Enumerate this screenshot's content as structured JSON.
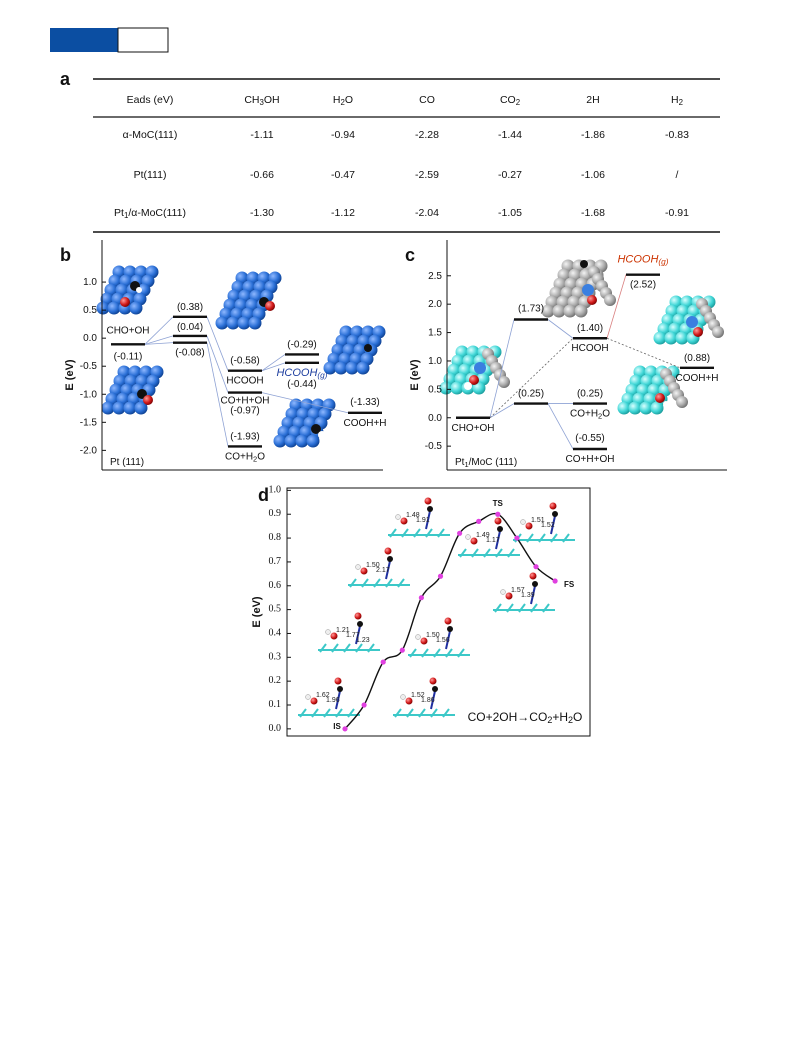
{
  "table": {
    "label": "a",
    "columns": [
      "Eads (eV)",
      "CH3OH",
      "H2O",
      "CO",
      "CO2",
      "2H",
      "H2"
    ],
    "rows": [
      [
        "α-MoC(111)",
        "-1.11",
        "-0.94",
        "-2.28",
        "-1.44",
        "-1.86",
        "-0.83"
      ],
      [
        "Pt(111)",
        "-0.66",
        "-0.47",
        "-2.59",
        "-0.27",
        "-1.06",
        "/"
      ],
      [
        "Pt1/α-MoC(111)",
        "-1.30",
        "-1.12",
        "-2.04",
        "-1.05",
        "-1.68",
        "-0.91"
      ]
    ]
  },
  "chart_data": [
    {
      "type": "levels",
      "label": "b",
      "y_label": "E (eV)",
      "surface": "Pt (111)",
      "ylim": [
        -2.35,
        1.75
      ],
      "yticks": [
        {
          "value": -2,
          "label": "-2.0"
        },
        -1.5,
        {
          "value": -1,
          "label": "-1.0"
        },
        -0.5,
        {
          "value": 0,
          "label": "0.0"
        },
        0.5,
        {
          "value": 1,
          "label": "1.0"
        }
      ],
      "color": "#111111",
      "link_color": "#8ea2d4",
      "atom_color": "blue",
      "steps": [
        [
          {
            "value": -0.11,
            "value_label": "(-0.11)",
            "name": "CHO+OH"
          }
        ],
        [
          {
            "value": 0.38,
            "value_label": "(0.38)"
          },
          {
            "value": 0.04,
            "value_label": "(0.04)"
          },
          {
            "value": -0.08,
            "value_label": "(-0.08)"
          }
        ],
        [
          {
            "value": -0.58,
            "value_label": "(-0.58)",
            "name": "HCOOH"
          },
          {
            "value": -0.97,
            "value_label": "(-0.97)",
            "name": "CO+H+OH"
          },
          {
            "value": -1.93,
            "value_label": "(-1.93)",
            "name": "CO+H2O"
          }
        ],
        [
          {
            "value": -0.29,
            "value_label": "(-0.29)"
          },
          {
            "value": -0.44,
            "value_label": "(-0.44)",
            "name": "HCOOH(g)",
            "name_color": "#1f3f9f"
          }
        ],
        [
          {
            "value": -1.33,
            "value_label": "(-1.33)",
            "name": "COOH+H"
          }
        ]
      ]
    },
    {
      "type": "levels",
      "label": "c",
      "y_label": "E (eV)",
      "surface": "Pt1/MoC (111)",
      "ylim": [
        -0.92,
        3.13
      ],
      "yticks": [
        -0.5,
        {
          "value": 0,
          "label": "0.0"
        },
        0.5,
        {
          "value": 1,
          "label": "1.0"
        },
        1.5,
        {
          "value": 2,
          "label": "2.0"
        },
        2.5
      ],
      "color": "#111111",
      "link_color": "#8ea2d4",
      "atom_color": "cyan",
      "steps": [
        [
          {
            "value": 0,
            "name": "CHO+OH"
          }
        ],
        [
          {
            "value": 1.73,
            "value_label": "(1.73)"
          },
          {
            "value": 0.25,
            "value_label": "(0.25)"
          }
        ],
        [
          {
            "value": 1.4,
            "value_label": "(1.40)",
            "name": "HCOOH"
          },
          {
            "value": 0.25,
            "value_label": "(0.25)",
            "name": "CO+H2O"
          },
          {
            "value": -0.55,
            "value_label": "(-0.55)",
            "name": "CO+H+OH"
          }
        ],
        [
          {
            "value": 2.52,
            "value_label": "(2.52)",
            "name": "HCOOH(g)",
            "name_color": "#cc3300"
          }
        ],
        [
          {
            "value": 0.88,
            "value_label": "(0.88)",
            "name": "COOH+H"
          }
        ]
      ]
    },
    {
      "type": "line",
      "label": "d",
      "y_label": "E (eV)",
      "annotation": "CO+2OH→CO2+H2O",
      "categories": [
        "IS",
        null,
        null,
        null,
        null,
        null,
        null,
        null,
        "TS",
        null,
        null,
        "FS"
      ],
      "values": [
        0.0,
        0.1,
        0.28,
        0.33,
        0.55,
        0.64,
        0.82,
        0.87,
        0.9,
        0.8,
        0.68,
        0.62
      ],
      "color": "#111111",
      "marker_color": "#e040e0",
      "ylim": [
        -0.03,
        1.01
      ],
      "yticks": [
        {
          "value": 0,
          "label": "0.0"
        },
        0.1,
        0.2,
        0.3,
        0.4,
        0.5,
        0.6,
        0.7,
        0.8,
        0.9,
        {
          "value": 1,
          "label": "1.0"
        }
      ],
      "structure_labels": [
        [
          "1.62",
          "1.96"
        ],
        [
          "1.52",
          "1.86"
        ],
        [
          "1.21",
          "1.77",
          "1.23"
        ],
        [
          "1.50",
          "1.56"
        ],
        [
          "1.50",
          "2.17"
        ],
        [
          "1.48",
          "1.91"
        ],
        [
          "1.49",
          "1.17"
        ],
        [
          "1.51",
          "1.52"
        ],
        [
          "1.57",
          "1.39"
        ]
      ]
    }
  ]
}
